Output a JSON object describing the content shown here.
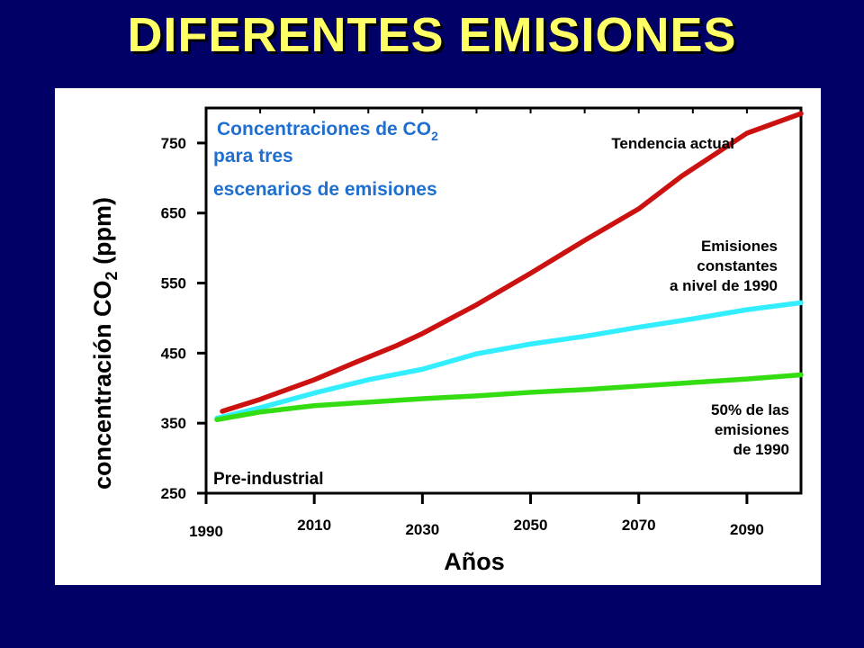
{
  "slide": {
    "title": "DIFERENTES EMISIONES"
  },
  "chart_data": {
    "type": "line",
    "title_lines": [
      "Concentraciones de CO",
      "para tres",
      "escenarios de emisiones"
    ],
    "title_subscript": "2",
    "ylabel": "concentración CO",
    "ylabel_subscript": "2",
    "ylabel_suffix": " (ppm)",
    "xlabel": "Años",
    "xlim": [
      1990,
      2100
    ],
    "ylim": [
      250,
      800
    ],
    "xticks": [
      1990,
      2010,
      2030,
      2050,
      2070,
      2090
    ],
    "xtick_labels": [
      "1990",
      "2010",
      "2030",
      "2050",
      "2070",
      "2090"
    ],
    "yticks": [
      250,
      350,
      450,
      550,
      650,
      750
    ],
    "ytick_labels": [
      "250",
      "350",
      "450",
      "550",
      "650",
      "750"
    ],
    "baseline_label": "Pre-industrial",
    "grid": false,
    "series": [
      {
        "name": "Tendencia actual",
        "label_lines": [
          "Tendencia actual"
        ],
        "color": "#cc1111",
        "x": [
          1993,
          2000,
          2010,
          2018,
          2025,
          2030,
          2040,
          2050,
          2060,
          2070,
          2078,
          2090,
          2100
        ],
        "y": [
          367,
          384,
          412,
          438,
          460,
          478,
          519,
          564,
          611,
          656,
          703,
          764,
          792
        ]
      },
      {
        "name": "Emisiones constantes a nivel de 1990",
        "label_lines": [
          "Emisiones",
          "constantes",
          "a nivel de 1990"
        ],
        "color": "#33eeff",
        "x": [
          1992,
          2000,
          2010,
          2020,
          2030,
          2040,
          2050,
          2060,
          2070,
          2080,
          2090,
          2100
        ],
        "y": [
          357,
          372,
          393,
          412,
          427,
          449,
          463,
          474,
          487,
          499,
          512,
          522
        ]
      },
      {
        "name": "50% de las emisiones de 1990",
        "label_lines": [
          "50% de las",
          "emisiones",
          "de 1990"
        ],
        "color": "#33dd11",
        "x": [
          1992,
          2000,
          2010,
          2020,
          2030,
          2040,
          2050,
          2060,
          2070,
          2080,
          2090,
          2100
        ],
        "y": [
          355,
          366,
          375,
          380,
          385,
          389,
          394,
          398,
          403,
          408,
          413,
          419
        ]
      }
    ]
  }
}
